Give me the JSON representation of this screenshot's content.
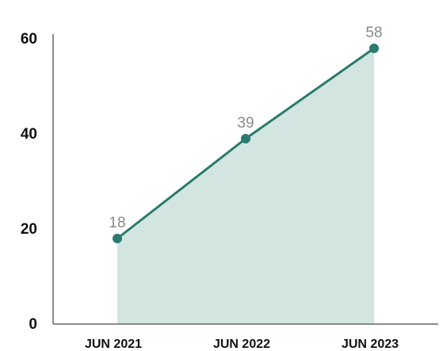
{
  "chart_data": {
    "type": "area",
    "categories": [
      "JUN 2021",
      "JUN 2022",
      "JUN 2023"
    ],
    "values": [
      18,
      39,
      58
    ],
    "color": "#2a7a6e",
    "fill_color": "#d3e5e1",
    "ylim": [
      0,
      60
    ],
    "yticks": [
      0,
      20,
      40,
      60
    ]
  }
}
